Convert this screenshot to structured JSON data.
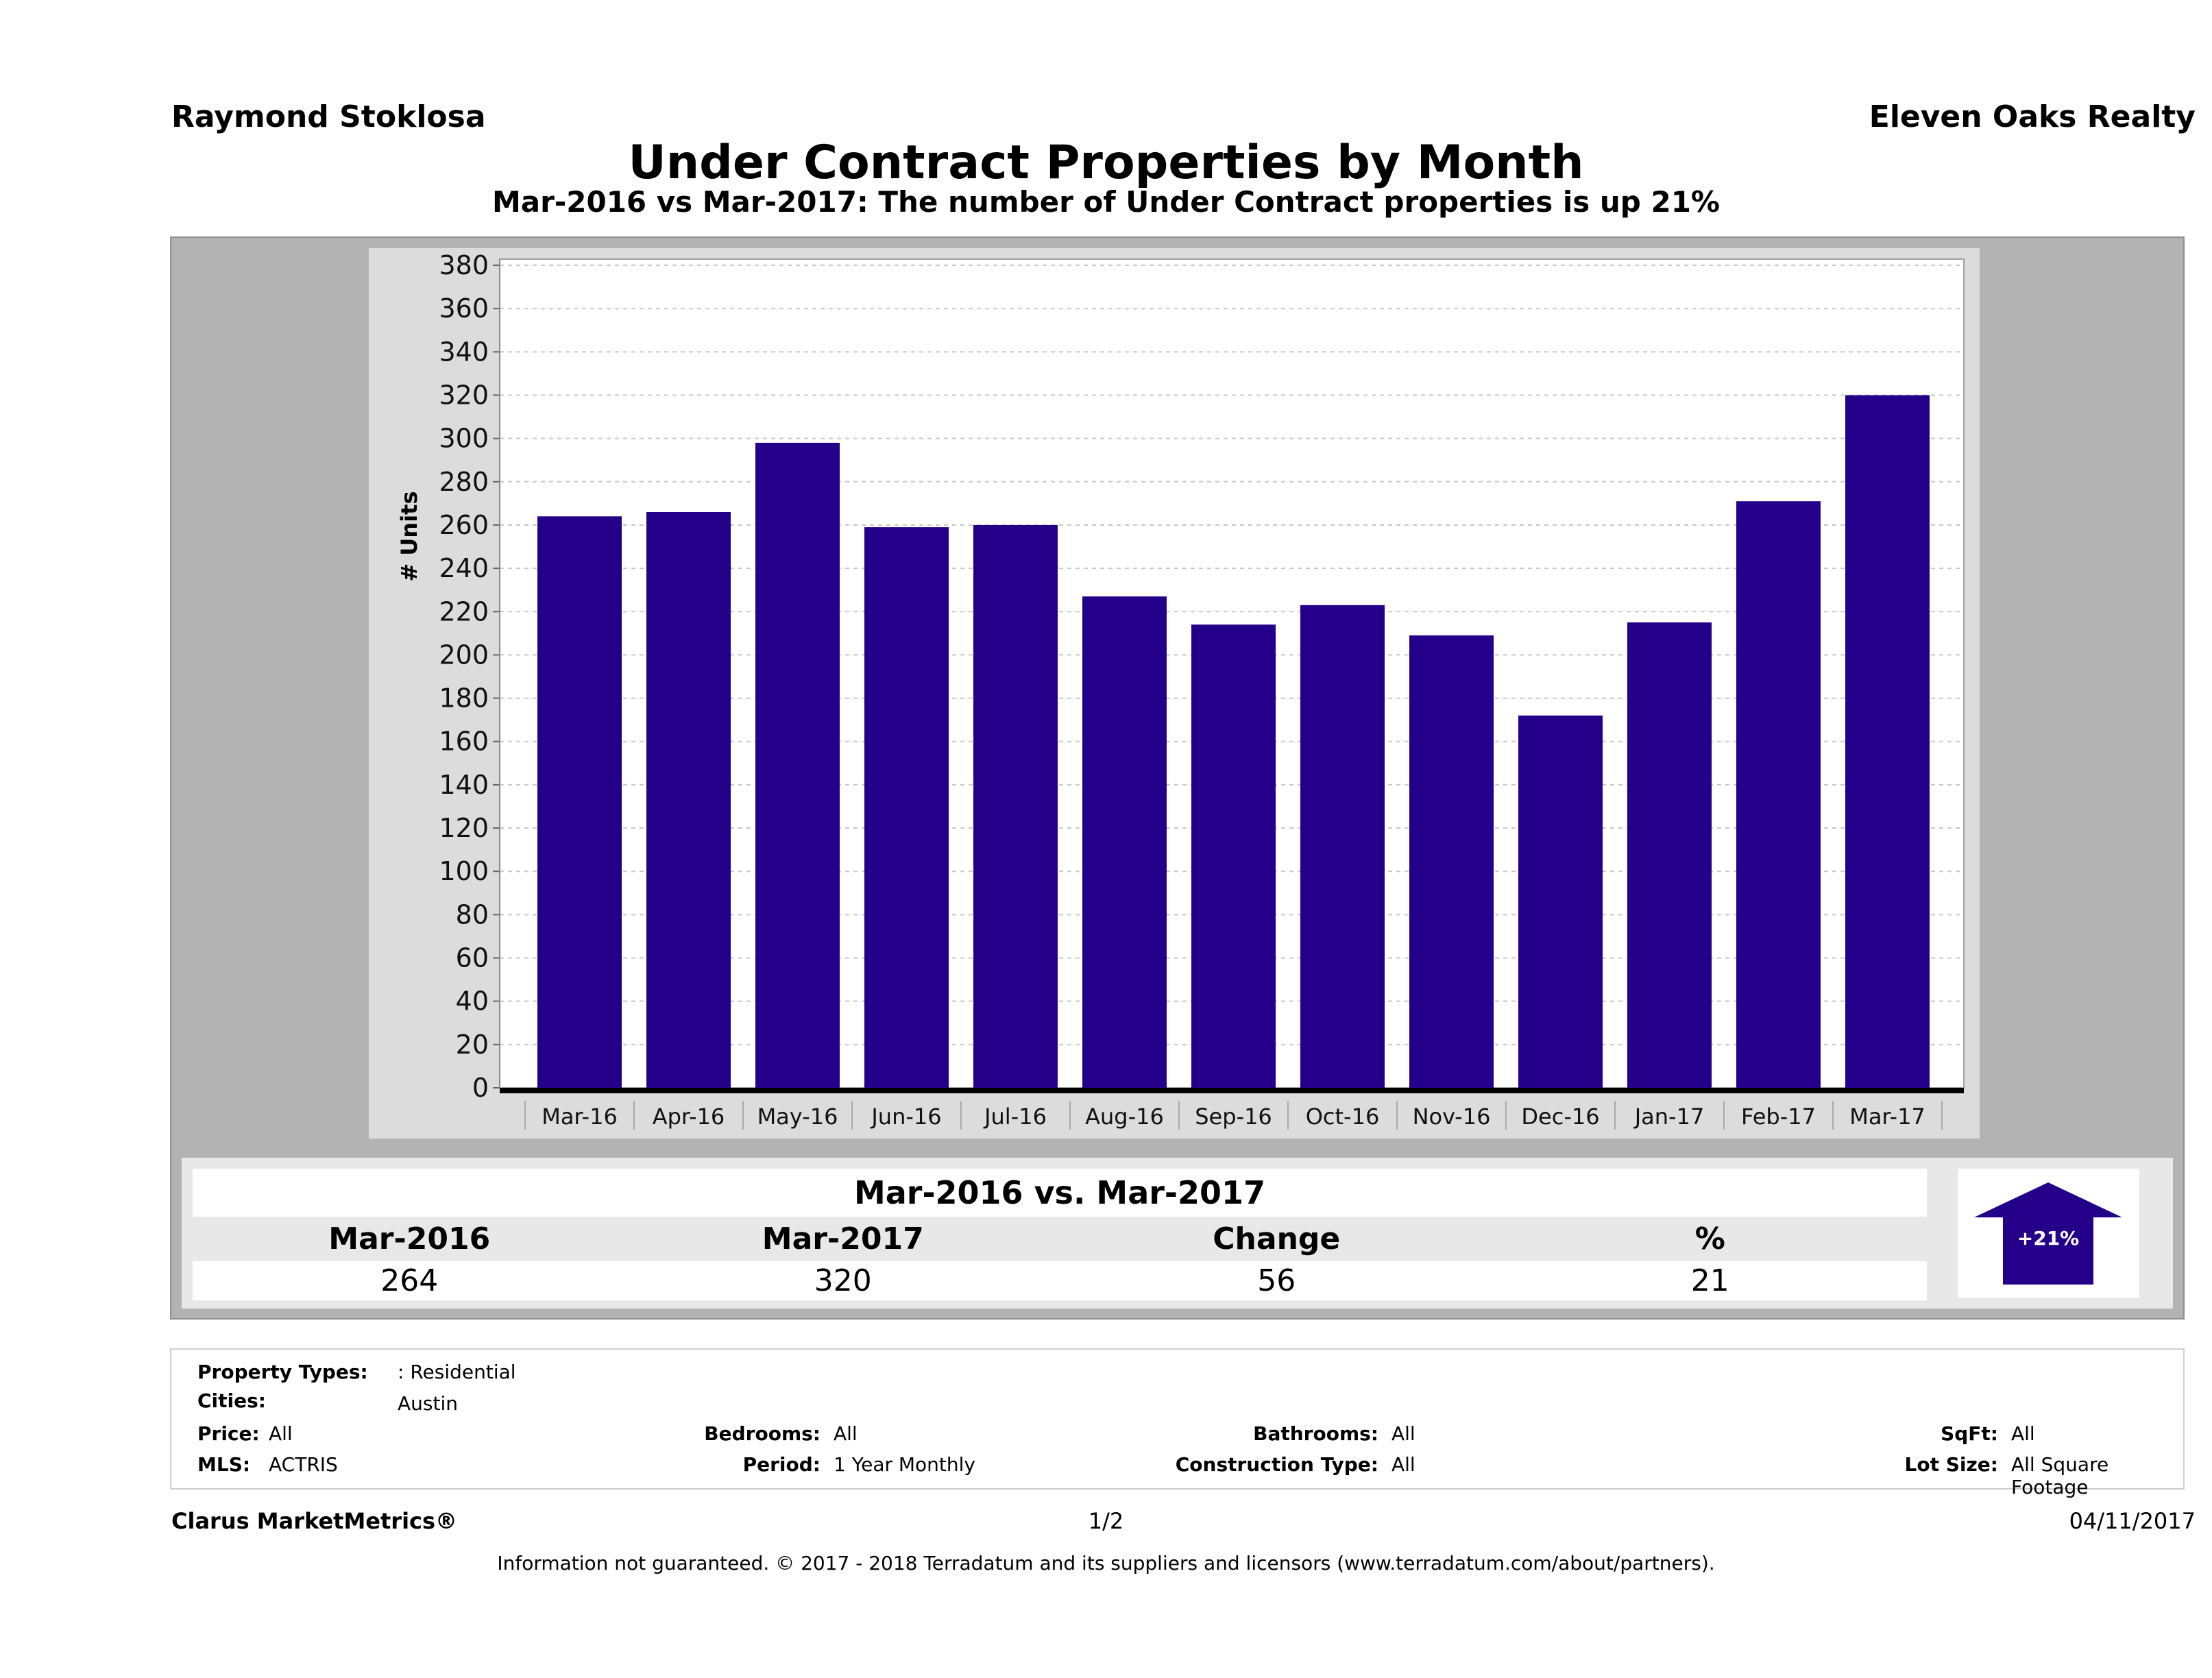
{
  "header": {
    "agent_name": "Raymond Stoklosa",
    "brokerage": "Eleven Oaks Realty",
    "title": "Under Contract Properties by Month",
    "subtitle": "Mar-2016 vs Mar-2017: The number of Under Contract  properties is up 21%"
  },
  "chart_data": {
    "type": "bar",
    "title": "Under Contract Properties by Month",
    "xlabel": "",
    "ylabel": "# Units",
    "categories": [
      "Mar-16",
      "Apr-16",
      "May-16",
      "Jun-16",
      "Jul-16",
      "Aug-16",
      "Sep-16",
      "Oct-16",
      "Nov-16",
      "Dec-16",
      "Jan-17",
      "Feb-17",
      "Mar-17"
    ],
    "values": [
      264,
      266,
      298,
      259,
      260,
      227,
      214,
      223,
      209,
      172,
      215,
      271,
      320
    ],
    "ylim": [
      0,
      380
    ],
    "yticks": [
      0,
      20,
      40,
      60,
      80,
      100,
      120,
      140,
      160,
      180,
      200,
      220,
      240,
      260,
      280,
      300,
      320,
      340,
      360,
      380
    ],
    "grid": true,
    "legend": "none",
    "bar_color": "#24008a"
  },
  "comparison": {
    "title": "Mar-2016 vs. Mar-2017",
    "headers": [
      "Mar-2016",
      "Mar-2017",
      "Change",
      "%"
    ],
    "values": [
      "264",
      "320",
      "56",
      "21"
    ],
    "badge": {
      "label": "+21%",
      "direction": "up",
      "color": "#24008a"
    }
  },
  "filters": {
    "property_types": {
      "label": "Property Types:",
      "value": ": Residential"
    },
    "cities": {
      "label": "Cities:",
      "value": "Austin"
    },
    "price": {
      "label": "Price:",
      "value": "All"
    },
    "mls": {
      "label": "MLS:",
      "value": "ACTRIS"
    },
    "bedrooms": {
      "label": "Bedrooms:",
      "value": "All"
    },
    "period": {
      "label": "Period:",
      "value": "1 Year Monthly"
    },
    "bathrooms": {
      "label": "Bathrooms:",
      "value": "All"
    },
    "construction_type": {
      "label": "Construction Type:",
      "value": "All"
    },
    "sqft": {
      "label": "SqFt:",
      "value": "All"
    },
    "lot_size": {
      "label": "Lot Size:",
      "value": "All Square Footage"
    }
  },
  "footer": {
    "brand": "Clarus MarketMetrics®",
    "page": "1/2",
    "date": "04/11/2017",
    "disclaimer": "Information not guaranteed. © 2017 - 2018 Terradatum and its suppliers and licensors (www.terradatum.com/about/partners)."
  }
}
